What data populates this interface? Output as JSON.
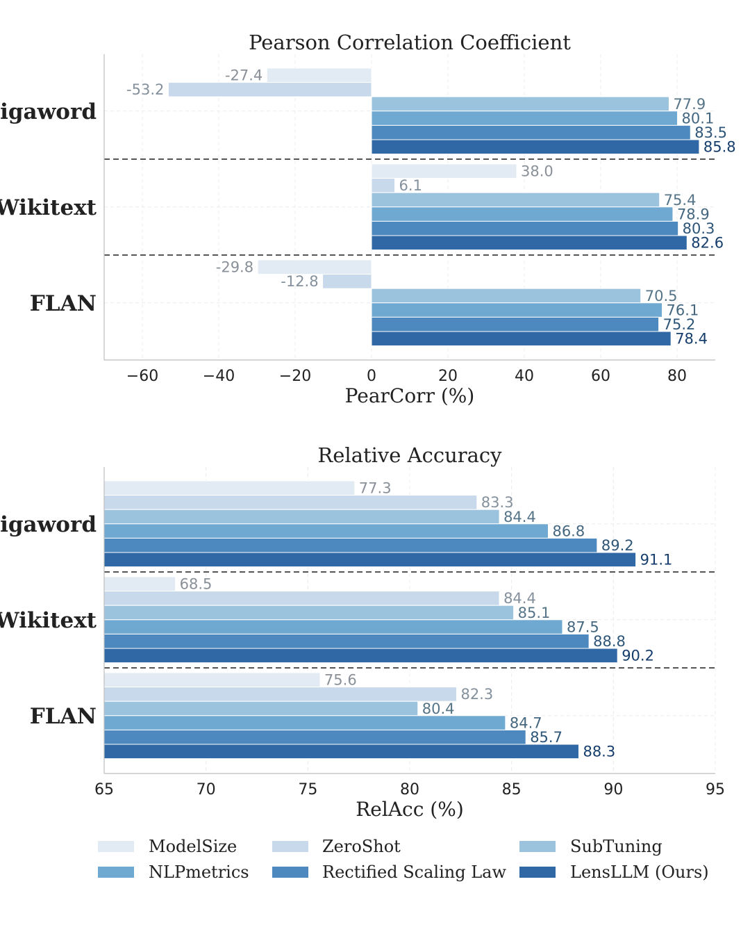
{
  "chart_data": [
    {
      "type": "bar",
      "orientation": "horizontal",
      "title": "Pearson Correlation Coefficient",
      "xlabel": "PearCorr (%)",
      "ylabel": "",
      "xlim": [
        -70,
        90
      ],
      "xticks": [
        -60,
        -40,
        -20,
        0,
        20,
        40,
        60,
        80
      ],
      "xtick_labels": [
        "−60",
        "−40",
        "−20",
        "0",
        "20",
        "40",
        "60",
        "80"
      ],
      "grid": true,
      "groups": [
        "Gigaword",
        "Wikitext",
        "FLAN"
      ],
      "value_labels": [
        [
          "-27.4",
          "-53.2",
          "77.9",
          "80.1",
          "83.5",
          "85.8"
        ],
        [
          "38.0",
          "6.1",
          "75.4",
          "78.9",
          "80.3",
          "82.6"
        ],
        [
          "-29.8",
          "-12.8",
          "70.5",
          "76.1",
          "75.2",
          "78.4"
        ]
      ],
      "series": [
        {
          "name": "ModelSize",
          "values": [
            -27.4,
            38.0,
            -29.8
          ]
        },
        {
          "name": "ZeroShot",
          "values": [
            -53.2,
            6.1,
            -12.8
          ]
        },
        {
          "name": "SubTuning",
          "values": [
            77.9,
            75.4,
            70.5
          ]
        },
        {
          "name": "NLPmetrics",
          "values": [
            80.1,
            78.9,
            76.1
          ]
        },
        {
          "name": "Rectified Scaling Law",
          "values": [
            83.5,
            80.3,
            75.2
          ]
        },
        {
          "name": "LensLLM (Ours)",
          "values": [
            85.8,
            82.6,
            78.4
          ]
        }
      ]
    },
    {
      "type": "bar",
      "orientation": "horizontal",
      "title": "Relative Accuracy",
      "xlabel": "RelAcc (%)",
      "ylabel": "",
      "xlim": [
        65,
        95
      ],
      "xticks": [
        65,
        70,
        75,
        80,
        85,
        90,
        95
      ],
      "xtick_labels": [
        "65",
        "70",
        "75",
        "80",
        "85",
        "90",
        "95"
      ],
      "grid": true,
      "groups": [
        "Gigaword",
        "Wikitext",
        "FLAN"
      ],
      "value_labels": [
        [
          "77.3",
          "83.3",
          "84.4",
          "86.8",
          "89.2",
          "91.1"
        ],
        [
          "68.5",
          "84.4",
          "85.1",
          "87.5",
          "88.8",
          "90.2"
        ],
        [
          "75.6",
          "82.3",
          "80.4",
          "84.7",
          "85.7",
          "88.3"
        ]
      ],
      "series": [
        {
          "name": "ModelSize",
          "values": [
            77.3,
            68.5,
            75.6
          ]
        },
        {
          "name": "ZeroShot",
          "values": [
            83.3,
            84.4,
            82.3
          ]
        },
        {
          "name": "SubTuning",
          "values": [
            84.4,
            85.1,
            80.4
          ]
        },
        {
          "name": "NLPmetrics",
          "values": [
            86.8,
            87.5,
            84.7
          ]
        },
        {
          "name": "Rectified Scaling Law",
          "values": [
            89.2,
            88.8,
            85.7
          ]
        },
        {
          "name": "LensLLM (Ours)",
          "values": [
            91.1,
            90.2,
            88.3
          ]
        }
      ]
    }
  ],
  "legend": {
    "placement": "bottom",
    "entries": [
      "ModelSize",
      "ZeroShot",
      "SubTuning",
      "NLPmetrics",
      "Rectified Scaling Law",
      "LensLLM (Ours)"
    ]
  },
  "series_colors": [
    "#e2ebf4",
    "#c7d9ea",
    "#9cc3de",
    "#6fa8d0",
    "#4d88be",
    "#2f68a5"
  ],
  "label_colors": [
    "#8a9098",
    "#84909c",
    "#567487",
    "#44677f",
    "#2d5577",
    "#163e6c"
  ]
}
